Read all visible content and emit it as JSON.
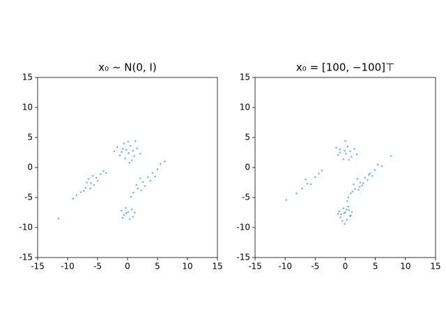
{
  "chart_data": [
    {
      "type": "scatter",
      "title": "x₀ ∼ N(0, I)",
      "color": "#1f77b4",
      "x": [
        0.2,
        -0.8,
        1.1,
        0.5,
        -1.3,
        0.9,
        -0.4,
        1.6,
        -1.7,
        0.1,
        -0.2,
        0.7,
        -1.0,
        2.1,
        0.3,
        -2.2,
        1.3,
        -0.6,
        -6.1,
        -5.2,
        -7.0,
        -4.5,
        -7.8,
        -5.6,
        -6.5,
        -4.0,
        -8.5,
        -6.8,
        -5.0,
        -7.3,
        -3.6,
        -6.2,
        -9.1,
        -5.8,
        2.6,
        3.4,
        1.7,
        4.2,
        1.0,
        2.9,
        2.1,
        5.0,
        0.6,
        3.8,
        1.5,
        4.6,
        2.3,
        5.5,
        0.1,
        -0.6,
        0.7,
        -0.3,
        0.9,
        -1.0,
        0.4,
        -0.2,
        1.2,
        -0.8,
        -11.5,
        6.2
      ],
      "y": [
        2.4,
        3.1,
        1.9,
        3.6,
        2.0,
        2.8,
        1.5,
        3.2,
        3.4,
        4.3,
        2.9,
        1.2,
        2.6,
        2.3,
        0.8,
        2.7,
        4.4,
        4.0,
        -2.6,
        -1.7,
        -3.4,
        -1.1,
        -4.1,
        -2.9,
        -1.9,
        -0.6,
        -4.6,
        -2.5,
        -2.2,
        -3.9,
        -0.9,
        -3.5,
        -5.2,
        -1.4,
        -2.4,
        -1.6,
        -3.5,
        -0.9,
        -4.2,
        -3.1,
        -1.8,
        -0.3,
        -4.9,
        -2.2,
        -2.9,
        -1.5,
        -3.8,
        0.6,
        -7.4,
        -7.9,
        -7.0,
        -6.7,
        -8.2,
        -7.2,
        -8.6,
        -7.6,
        -7.5,
        -8.4,
        -8.5,
        1.0
      ],
      "xlim": [
        -15,
        15
      ],
      "ylim": [
        -15,
        15
      ],
      "xticks": [
        -15,
        -10,
        -5,
        0,
        5,
        10,
        15
      ],
      "yticks": [
        -15,
        -10,
        -5,
        0,
        5,
        10,
        15
      ]
    },
    {
      "type": "scatter",
      "title": "x₀ = [100, −100]⊤",
      "color": "#1f77b4",
      "x": [
        0.1,
        -0.9,
        1.0,
        0.4,
        -1.2,
        0.8,
        -0.3,
        1.5,
        -1.5,
        0.0,
        -0.1,
        0.6,
        -0.9,
        1.9,
        -6.3,
        -5.0,
        -7.2,
        -4.4,
        -8.1,
        -5.7,
        -6.6,
        -3.9,
        -9.8,
        2.5,
        3.3,
        1.6,
        4.1,
        0.9,
        2.8,
        2.0,
        4.9,
        0.5,
        3.7,
        1.4,
        4.5,
        2.2,
        5.4,
        3.0,
        1.2,
        3.9,
        2.4,
        6.1,
        0.3,
        7.6,
        0.0,
        -0.7,
        0.6,
        -0.3,
        0.8,
        -1.0,
        0.3,
        -0.2,
        1.1,
        -0.8,
        0.5,
        -0.5,
        0.2,
        -1.2,
        0.9,
        -0.1
      ],
      "y": [
        2.3,
        3.0,
        1.8,
        3.5,
        2.1,
        2.7,
        1.4,
        3.1,
        3.3,
        4.4,
        2.8,
        1.3,
        2.5,
        2.2,
        -2.7,
        -1.6,
        -3.5,
        -1.0,
        -4.3,
        -2.8,
        -2.0,
        -0.5,
        -5.4,
        -2.5,
        -1.7,
        -3.6,
        -1.0,
        -4.3,
        -3.0,
        -1.9,
        -0.4,
        -5.0,
        -2.1,
        -2.8,
        -1.4,
        -3.7,
        0.5,
        -2.6,
        -4.0,
        -1.2,
        -3.2,
        0.2,
        -5.6,
        1.9,
        -7.5,
        -7.8,
        -7.1,
        -6.8,
        -8.1,
        -7.3,
        -8.7,
        -7.6,
        -7.4,
        -8.3,
        -6.5,
        -8.9,
        -7.0,
        -7.7,
        -8.0,
        -9.4
      ],
      "xlim": [
        -15,
        15
      ],
      "ylim": [
        -15,
        15
      ],
      "xticks": [
        -15,
        -10,
        -5,
        0,
        5,
        10,
        15
      ],
      "yticks": [
        -15,
        -10,
        -5,
        0,
        5,
        10,
        15
      ]
    }
  ]
}
